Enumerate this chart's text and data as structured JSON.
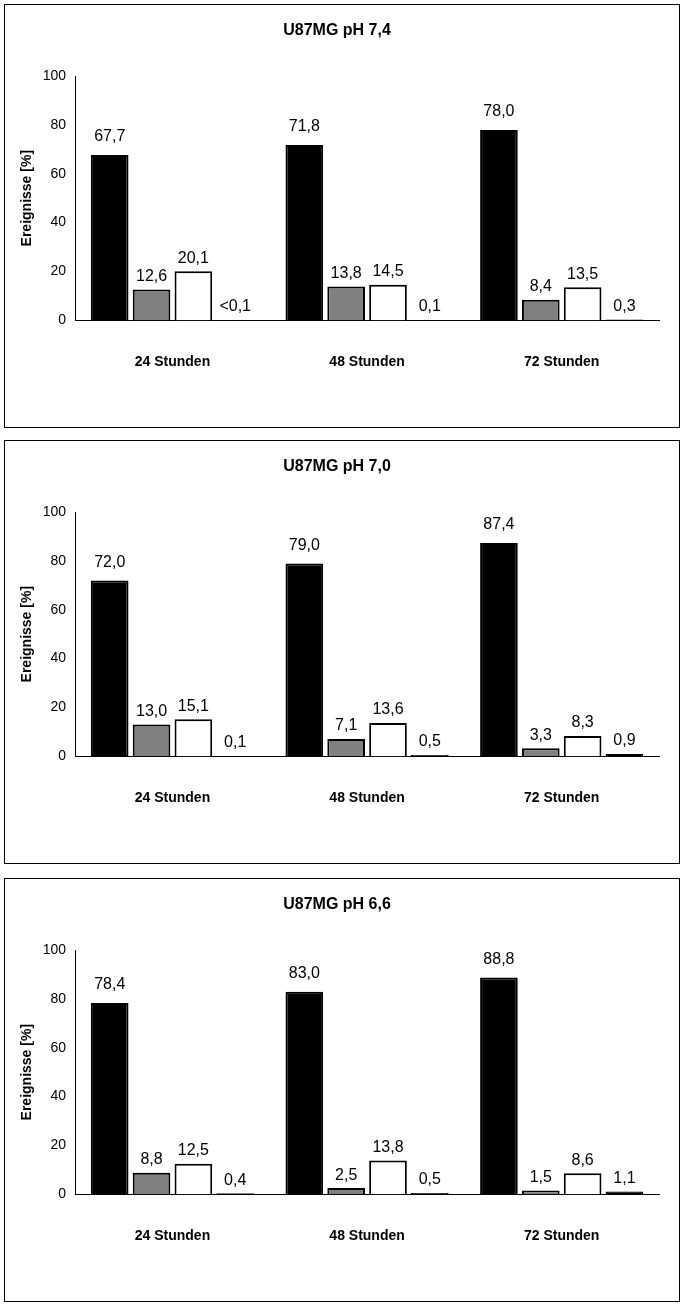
{
  "chart_data": [
    {
      "type": "bar",
      "title": "U87MG pH 7,4",
      "ylabel": "Ereignisse [%]",
      "categories": [
        "24 Stunden",
        "48 Stunden",
        "72 Stunden"
      ],
      "ylim": [
        0,
        100
      ],
      "yticks": [
        0,
        20,
        40,
        60,
        80,
        100
      ],
      "grid": false,
      "legend": false,
      "series": [
        {
          "color": "#000000",
          "values": [
            67.7,
            71.8,
            78.0
          ],
          "value_labels": [
            "67,7",
            "71,8",
            "78,0"
          ]
        },
        {
          "color": "#808080",
          "values": [
            12.6,
            13.8,
            8.4
          ],
          "value_labels": [
            "12,6",
            "13,8",
            "8,4"
          ]
        },
        {
          "color": "#ffffff",
          "values": [
            20.1,
            14.5,
            13.5
          ],
          "value_labels": [
            "20,1",
            "14,5",
            "13,5"
          ]
        },
        {
          "color": "#000000",
          "values": [
            0.05,
            0.1,
            0.3
          ],
          "value_labels": [
            "<0,1",
            "0,1",
            "0,3"
          ]
        }
      ]
    },
    {
      "type": "bar",
      "title": "U87MG pH 7,0",
      "ylabel": "Ereignisse [%]",
      "categories": [
        "24 Stunden",
        "48 Stunden",
        "72 Stunden"
      ],
      "ylim": [
        0,
        100
      ],
      "yticks": [
        0,
        20,
        40,
        60,
        80,
        100
      ],
      "grid": false,
      "legend": false,
      "series": [
        {
          "color": "#000000",
          "values": [
            72.0,
            79.0,
            87.4
          ],
          "value_labels": [
            "72,0",
            "79,0",
            "87,4"
          ]
        },
        {
          "color": "#808080",
          "values": [
            13.0,
            7.1,
            3.3
          ],
          "value_labels": [
            "13,0",
            "7,1",
            "3,3"
          ]
        },
        {
          "color": "#ffffff",
          "values": [
            15.1,
            13.6,
            8.3
          ],
          "value_labels": [
            "15,1",
            "13,6",
            "8,3"
          ]
        },
        {
          "color": "#000000",
          "values": [
            0.1,
            0.5,
            0.9
          ],
          "value_labels": [
            "0,1",
            "0,5",
            "0,9"
          ]
        }
      ]
    },
    {
      "type": "bar",
      "title": "U87MG pH 6,6",
      "ylabel": "Ereignisse [%]",
      "categories": [
        "24 Stunden",
        "48 Stunden",
        "72 Stunden"
      ],
      "ylim": [
        0,
        100
      ],
      "yticks": [
        0,
        20,
        40,
        60,
        80,
        100
      ],
      "grid": false,
      "legend": false,
      "series": [
        {
          "color": "#000000",
          "values": [
            78.4,
            83.0,
            88.8
          ],
          "value_labels": [
            "78,4",
            "83,0",
            "88,8"
          ]
        },
        {
          "color": "#808080",
          "values": [
            8.8,
            2.5,
            1.5
          ],
          "value_labels": [
            "8,8",
            "2,5",
            "1,5"
          ]
        },
        {
          "color": "#ffffff",
          "values": [
            12.5,
            13.8,
            8.6
          ],
          "value_labels": [
            "12,5",
            "13,8",
            "8,6"
          ]
        },
        {
          "color": "#000000",
          "values": [
            0.4,
            0.5,
            1.1
          ],
          "value_labels": [
            "0,4",
            "0,5",
            "1,1"
          ]
        }
      ]
    }
  ]
}
